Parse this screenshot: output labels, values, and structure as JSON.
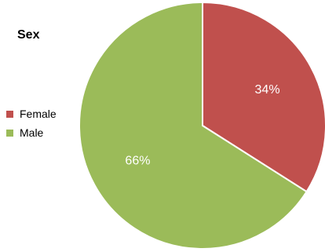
{
  "chart_data": {
    "type": "pie",
    "title": "Sex",
    "legend_position": "left",
    "slices": [
      {
        "label": "Female",
        "value": 34,
        "display": "34%",
        "color": "#C0504D"
      },
      {
        "label": "Male",
        "value": 66,
        "display": "66%",
        "color": "#9BBB59"
      }
    ]
  }
}
